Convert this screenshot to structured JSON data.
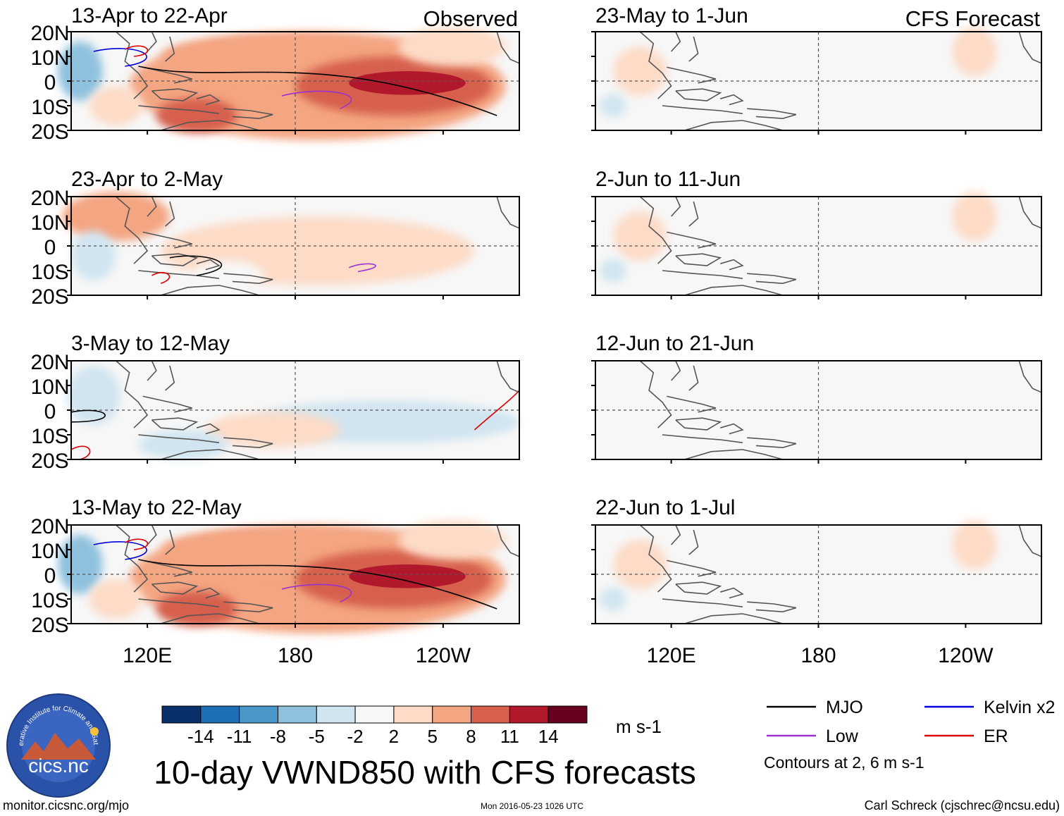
{
  "chart_data": {
    "type": "heatmap",
    "title": "10-day VWND850 with CFS forecasts",
    "variable": "VWND850",
    "units": "m s-1",
    "panel_groups": {
      "left": "Observed",
      "right": "CFS Forecast"
    },
    "x_ticks": [
      "120E",
      "180",
      "120W"
    ],
    "y_ticks": [
      "20N",
      "10N",
      "0",
      "10S",
      "20S"
    ],
    "colorbar": {
      "levels": [
        "-14",
        "-11",
        "-8",
        "-5",
        "-2",
        "2",
        "5",
        "8",
        "11",
        "14"
      ],
      "colors": [
        "#08306b",
        "#1e6fb5",
        "#4a98ca",
        "#8fc1de",
        "#d1e5f0",
        "#f7f7f7",
        "#fddbc7",
        "#f4a582",
        "#d6604d",
        "#b2182b",
        "#67001f"
      ]
    },
    "panels": [
      {
        "period": "13-Apr to 22-Apr",
        "group": "Observed",
        "pattern": "strong_south"
      },
      {
        "period": "23-Apr to 2-May",
        "group": "Observed",
        "pattern": "weak_mixed"
      },
      {
        "period": "3-May to 12-May",
        "group": "Observed",
        "pattern": "weak_north"
      },
      {
        "period": "13-May to 22-May",
        "group": "Observed",
        "pattern": "strong_south_late"
      },
      {
        "period": "23-May to 1-Jun",
        "group": "CFS Forecast",
        "pattern": "faint"
      },
      {
        "period": "2-Jun to 11-Jun",
        "group": "CFS Forecast",
        "pattern": "faint"
      },
      {
        "period": "12-Jun to 21-Jun",
        "group": "CFS Forecast",
        "pattern": "empty"
      },
      {
        "period": "22-Jun to 1-Jul",
        "group": "CFS Forecast",
        "pattern": "faint"
      }
    ],
    "contour_legend": [
      {
        "label": "MJO",
        "color": "#000000"
      },
      {
        "label": "Kelvin x2",
        "color": "#0000dd"
      },
      {
        "label": "Low",
        "color": "#9932cc"
      },
      {
        "label": "ER",
        "color": "#dd0000"
      }
    ],
    "contour_note": "Contours at 2, 6 m s-1"
  },
  "footer": {
    "url": "monitor.cicsnc.org/mjo",
    "timestamp": "Mon 2016-05-23 1026 UTC",
    "author": "Carl Schreck (cjschrec@ncsu.edu)"
  },
  "logo": {
    "text": "cics.nc",
    "ring_text": "Cooperative Institute for Climate and Satellites"
  }
}
